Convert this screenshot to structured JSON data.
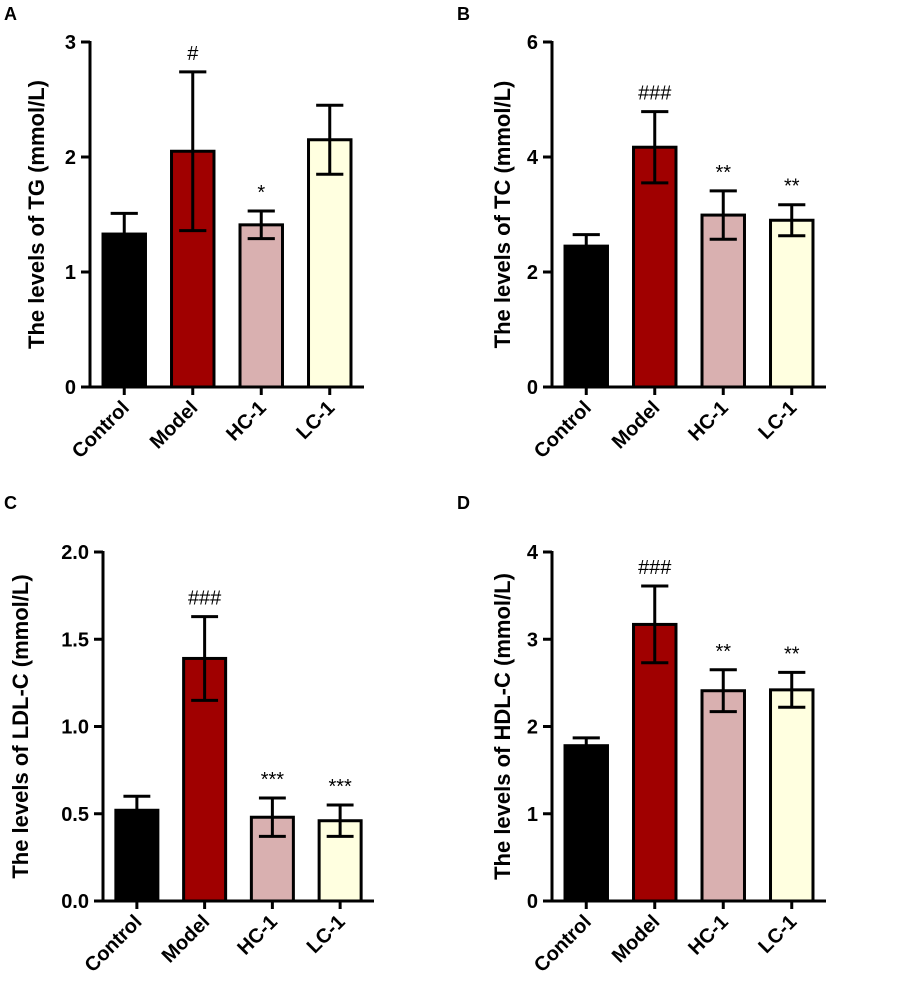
{
  "chart_data": [
    {
      "panel": "A",
      "type": "bar",
      "ylabel": "The levels of TG (mmol/L)",
      "ylim": [
        0,
        3
      ],
      "yticks": [
        0,
        1,
        2,
        3
      ],
      "yticklabels": [
        "0",
        "1",
        "2",
        "3"
      ],
      "categories": [
        "Control",
        "Model",
        "HC-1",
        "LC-1"
      ],
      "values": [
        1.33,
        2.05,
        1.41,
        2.15
      ],
      "errors": [
        0.18,
        0.69,
        0.12,
        0.3
      ],
      "annotations": [
        "",
        "#",
        "*",
        ""
      ],
      "colors": [
        "#000000",
        "#a00000",
        "#d9b0b0",
        "#ffffe0"
      ]
    },
    {
      "panel": "B",
      "type": "bar",
      "ylabel": "The levels of TC (mmol/L)",
      "ylim": [
        0,
        6
      ],
      "yticks": [
        0,
        2,
        4,
        6
      ],
      "yticklabels": [
        "0",
        "2",
        "4",
        "6"
      ],
      "categories": [
        "Control",
        "Model",
        "HC-1",
        "LC-1"
      ],
      "values": [
        2.45,
        4.17,
        2.99,
        2.9
      ],
      "errors": [
        0.2,
        0.62,
        0.42,
        0.27
      ],
      "annotations": [
        "",
        "###",
        "**",
        "**"
      ],
      "colors": [
        "#000000",
        "#a00000",
        "#d9b0b0",
        "#ffffe0"
      ]
    },
    {
      "panel": "C",
      "type": "bar",
      "ylabel": "The levels of LDL-C (mmol/L)",
      "ylim": [
        0,
        2.0
      ],
      "yticks": [
        0,
        0.5,
        1.0,
        1.5,
        2.0
      ],
      "yticklabels": [
        "0.0",
        "0.5",
        "1.0",
        "1.5",
        "2.0"
      ],
      "categories": [
        "Control",
        "Model",
        "HC-1",
        "LC-1"
      ],
      "values": [
        0.52,
        1.39,
        0.48,
        0.46
      ],
      "errors": [
        0.08,
        0.24,
        0.11,
        0.09
      ],
      "annotations": [
        "",
        "###",
        "***",
        "***"
      ],
      "colors": [
        "#000000",
        "#a00000",
        "#d9b0b0",
        "#ffffe0"
      ]
    },
    {
      "panel": "D",
      "type": "bar",
      "ylabel": "The levels of HDL-C (mmol/L)",
      "ylim": [
        0,
        4
      ],
      "yticks": [
        0,
        1,
        2,
        3,
        4
      ],
      "yticklabels": [
        "0",
        "1",
        "2",
        "3",
        "4"
      ],
      "categories": [
        "Control",
        "Model",
        "HC-1",
        "LC-1"
      ],
      "values": [
        1.78,
        3.17,
        2.41,
        2.42
      ],
      "errors": [
        0.09,
        0.44,
        0.24,
        0.2
      ],
      "annotations": [
        "",
        "###",
        "**",
        "**"
      ],
      "colors": [
        "#000000",
        "#a00000",
        "#d9b0b0",
        "#ffffe0"
      ]
    }
  ]
}
